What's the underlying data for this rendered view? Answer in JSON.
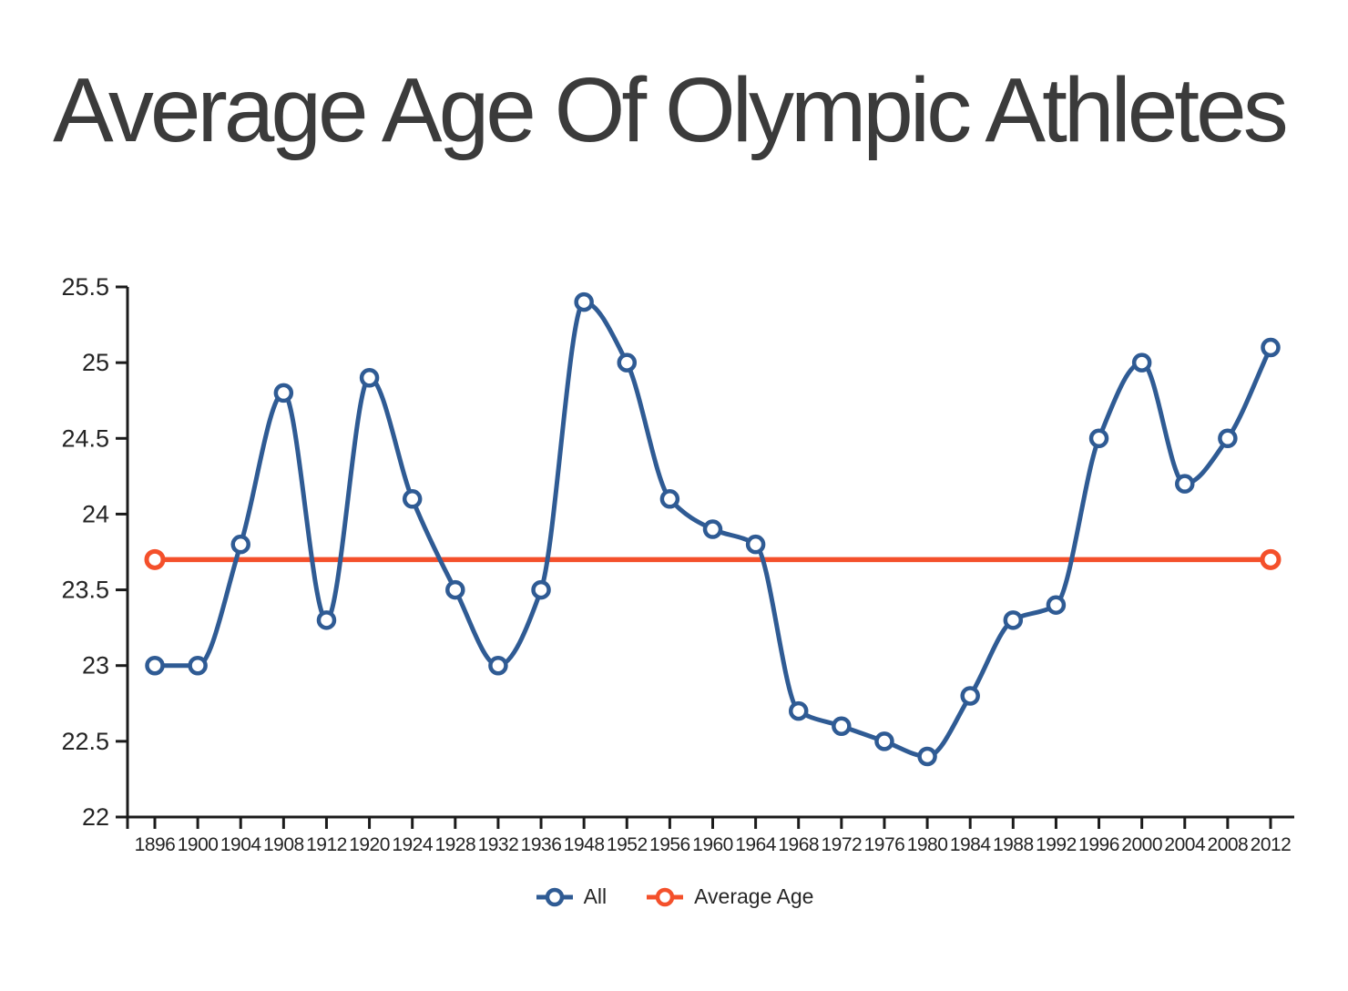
{
  "title": "Average Age Of Olympic Athletes",
  "legend": {
    "items": [
      {
        "label": "All",
        "color": "#2f5b94"
      },
      {
        "label": "Average Age",
        "color": "#f4502b"
      }
    ]
  },
  "axis": {
    "line_color": "#1b1b1b",
    "label_color": "#242424"
  },
  "chart_data": {
    "type": "line",
    "title": "Average Age Of Olympic Athletes",
    "categories": [
      "1896",
      "1900",
      "1904",
      "1908",
      "1912",
      "1920",
      "1924",
      "1928",
      "1932",
      "1936",
      "1948",
      "1952",
      "1956",
      "1960",
      "1964",
      "1968",
      "1972",
      "1976",
      "1980",
      "1984",
      "1988",
      "1992",
      "1996",
      "2000",
      "2004",
      "2008",
      "2012"
    ],
    "series": [
      {
        "name": "All",
        "render": "smooth-line",
        "color": "#2f5b94",
        "marker": "open-circle",
        "values": [
          23.0,
          23.0,
          23.8,
          24.8,
          23.3,
          24.9,
          24.1,
          23.5,
          23.0,
          23.5,
          25.4,
          25.0,
          24.1,
          23.9,
          23.8,
          22.7,
          22.6,
          22.5,
          22.4,
          22.8,
          23.3,
          23.4,
          24.5,
          25.0,
          24.2,
          24.5,
          25.1
        ]
      },
      {
        "name": "Average Age",
        "render": "constant-line",
        "color": "#f4502b",
        "marker": "open-circle-ends",
        "value": 23.7
      }
    ],
    "ylim": [
      22,
      25.5
    ],
    "ytick_step": 0.5,
    "grid": false,
    "legend_position": "bottom"
  }
}
